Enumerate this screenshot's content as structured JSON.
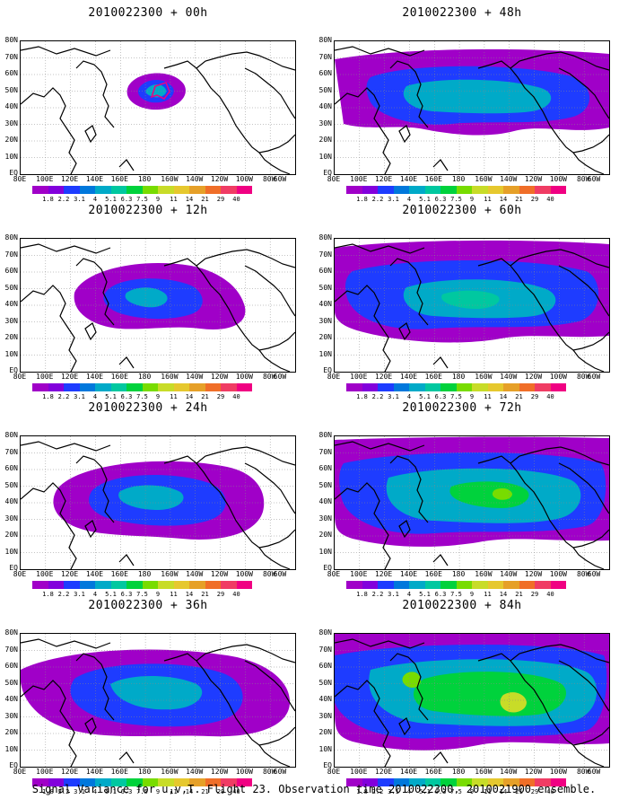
{
  "panels": [
    {
      "title": "2010022300 + 00h",
      "level": 0
    },
    {
      "title": "2010022300 + 48h",
      "level": 4
    },
    {
      "title": "2010022300 + 12h",
      "level": 1
    },
    {
      "title": "2010022300 + 60h",
      "level": 5
    },
    {
      "title": "2010022300 + 24h",
      "level": 2
    },
    {
      "title": "2010022300 + 72h",
      "level": 6
    },
    {
      "title": "2010022300 + 36h",
      "level": 3
    },
    {
      "title": "2010022300 + 84h",
      "level": 7
    }
  ],
  "lat_labels": [
    "80N",
    "70N",
    "60N",
    "50N",
    "40N",
    "30N",
    "20N",
    "10N",
    "EQ"
  ],
  "lon_labels": [
    "80E",
    "100E",
    "120E",
    "140E",
    "160E",
    "180",
    "160W",
    "140W",
    "120W",
    "100W",
    "80W",
    "60W"
  ],
  "colorbar": {
    "labels": [
      "1.8",
      "2.2",
      "3.1",
      "4",
      "5.1",
      "6.3",
      "7.5",
      "9",
      "11",
      "14",
      "21",
      "29",
      "40"
    ],
    "colors": [
      "#a000c8",
      "#8200dc",
      "#1e3cff",
      "#0078dc",
      "#00aac8",
      "#00c8a0",
      "#00d23c",
      "#78dc00",
      "#c8dc28",
      "#e6c82e",
      "#e6a028",
      "#f06e28",
      "#f03c64",
      "#f00082"
    ]
  },
  "footer": "Signal Variance for u,v,T. Flight 23. Observation time 2010022300. 2010021900 ensemble."
}
